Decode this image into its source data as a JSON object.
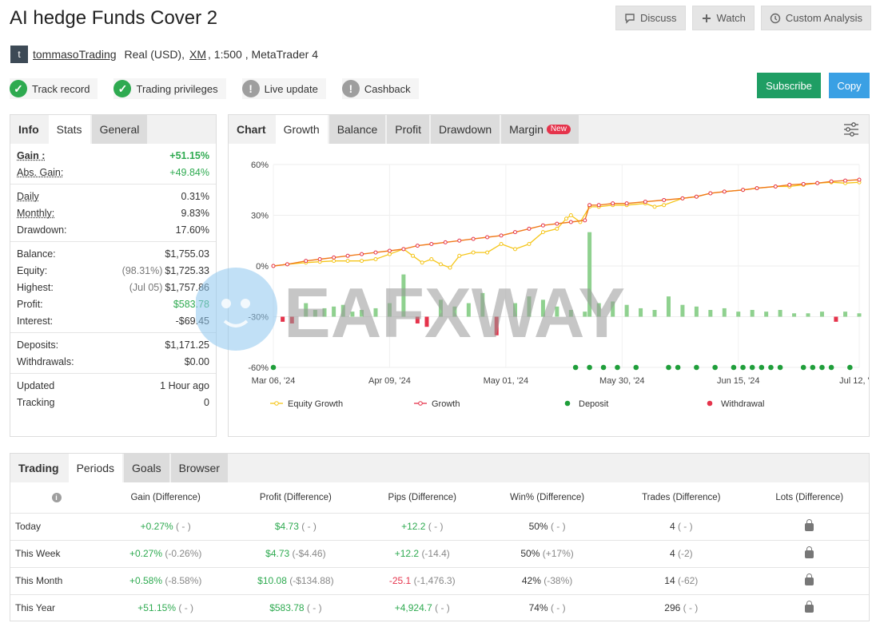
{
  "header": {
    "title": "AI hedge Funds Cover 2",
    "discuss_label": "Discuss",
    "watch_label": "Watch",
    "custom_analysis_label": "Custom Analysis"
  },
  "owner": {
    "avatar_letter": "t",
    "name": "tommasoTrading",
    "account_type": "Real (USD),",
    "broker": "XM",
    "details": ", 1:500 , MetaTrader 4"
  },
  "badges": [
    {
      "label": "Track record",
      "status": "ok"
    },
    {
      "label": "Trading privileges",
      "status": "ok"
    },
    {
      "label": "Live update",
      "status": "warn"
    },
    {
      "label": "Cashback",
      "status": "warn"
    }
  ],
  "actions": {
    "subscribe_label": "Subscribe",
    "copy_label": "Copy"
  },
  "stats_tabs": [
    "Info",
    "Stats",
    "General"
  ],
  "stats": {
    "gain_label": "Gain :",
    "gain_value": "+51.15%",
    "abs_gain_label": "Abs. Gain:",
    "abs_gain_value": "+49.84%",
    "daily_label": "Daily",
    "daily_value": "0.31%",
    "monthly_label": "Monthly:",
    "monthly_value": "9.83%",
    "drawdown_label": "Drawdown:",
    "drawdown_value": "17.60%",
    "balance_label": "Balance:",
    "balance_value": "$1,755.03",
    "equity_label": "Equity:",
    "equity_pct": "(98.31%)",
    "equity_value": "$1,725.33",
    "highest_label": "Highest:",
    "highest_date": "(Jul 05)",
    "highest_value": "$1,757.86",
    "profit_label": "Profit:",
    "profit_value": "$583.78",
    "interest_label": "Interest:",
    "interest_value": "-$69.45",
    "deposits_label": "Deposits:",
    "deposits_value": "$1,171.25",
    "withdrawals_label": "Withdrawals:",
    "withdrawals_value": "$0.00",
    "updated_label": "Updated",
    "updated_value": "1 Hour ago",
    "tracking_label": "Tracking",
    "tracking_value": "0"
  },
  "chart_tabs": [
    "Chart",
    "Growth",
    "Balance",
    "Profit",
    "Drawdown",
    "Margin"
  ],
  "chart_new_badge": "New",
  "watermark_text": "EAFXWAY",
  "chart_data": {
    "type": "line",
    "ylim": [
      -60,
      60
    ],
    "ytick_labels": [
      "60%",
      "30%",
      "0%",
      "-30%",
      "-60%"
    ],
    "yticks": [
      60,
      30,
      0,
      -30,
      -60
    ],
    "xtick_labels": [
      "Mar 06, '24",
      "Apr 09, '24",
      "May 01, '24",
      "May 30, '24",
      "Jun 15, '24",
      "Jul 12, '24"
    ],
    "xticks": [
      0,
      25,
      50,
      75,
      100,
      126
    ],
    "xlim": [
      0,
      126
    ],
    "legend": [
      "Equity Growth",
      "Growth",
      "Deposit",
      "Withdrawal"
    ],
    "colors": {
      "equity": "#f5c518",
      "growth": "#e5334b",
      "growth_line": "#f07a1a",
      "deposit": "#1f9e3a",
      "withdrawal": "#e5334b",
      "bar_pos": "#8fd18f",
      "bar_neg": "#e5334b"
    },
    "series": [
      {
        "name": "Growth",
        "points": [
          [
            0,
            0
          ],
          [
            3,
            1
          ],
          [
            7,
            3
          ],
          [
            10,
            4
          ],
          [
            13,
            5
          ],
          [
            16,
            6
          ],
          [
            19,
            7
          ],
          [
            22,
            8
          ],
          [
            25,
            9
          ],
          [
            28,
            10
          ],
          [
            31,
            12
          ],
          [
            34,
            13
          ],
          [
            37,
            14
          ],
          [
            40,
            15
          ],
          [
            43,
            16
          ],
          [
            46,
            17
          ],
          [
            49,
            18
          ],
          [
            52,
            20
          ],
          [
            55,
            22
          ],
          [
            58,
            24
          ],
          [
            61,
            25
          ],
          [
            64,
            26
          ],
          [
            67,
            27
          ],
          [
            68,
            36
          ],
          [
            70,
            36
          ],
          [
            73,
            37
          ],
          [
            76,
            37
          ],
          [
            80,
            38
          ],
          [
            84,
            39
          ],
          [
            88,
            40
          ],
          [
            91,
            41
          ],
          [
            94,
            43
          ],
          [
            97,
            44
          ],
          [
            101,
            45
          ],
          [
            104,
            46
          ],
          [
            108,
            47
          ],
          [
            111,
            48
          ],
          [
            114,
            48.5
          ],
          [
            117,
            49
          ],
          [
            120,
            50
          ],
          [
            123,
            50.5
          ],
          [
            126,
            51
          ]
        ]
      },
      {
        "name": "Equity Growth",
        "points": [
          [
            0,
            0
          ],
          [
            3,
            1
          ],
          [
            7,
            2
          ],
          [
            10,
            2.5
          ],
          [
            13,
            3
          ],
          [
            16,
            3
          ],
          [
            19,
            3
          ],
          [
            22,
            4
          ],
          [
            25,
            7
          ],
          [
            28,
            10
          ],
          [
            30,
            6
          ],
          [
            32,
            2
          ],
          [
            34,
            4
          ],
          [
            36,
            1
          ],
          [
            38,
            -1
          ],
          [
            40,
            6
          ],
          [
            43,
            8
          ],
          [
            46,
            8
          ],
          [
            49,
            13
          ],
          [
            52,
            10
          ],
          [
            55,
            13
          ],
          [
            58,
            20
          ],
          [
            61,
            22
          ],
          [
            63,
            28
          ],
          [
            64,
            30
          ],
          [
            66,
            26
          ],
          [
            68,
            35
          ],
          [
            70,
            35
          ],
          [
            73,
            36
          ],
          [
            76,
            36
          ],
          [
            80,
            37
          ],
          [
            82,
            35
          ],
          [
            84,
            36
          ],
          [
            88,
            40
          ],
          [
            91,
            41
          ],
          [
            94,
            43
          ],
          [
            97,
            44
          ],
          [
            101,
            45
          ],
          [
            104,
            46
          ],
          [
            108,
            47
          ],
          [
            111,
            47
          ],
          [
            114,
            48
          ],
          [
            117,
            49
          ],
          [
            120,
            49.5
          ],
          [
            123,
            49
          ],
          [
            126,
            49.5
          ]
        ]
      }
    ],
    "daily_bars": [
      [
        2,
        -3
      ],
      [
        4,
        -4
      ],
      [
        7,
        8
      ],
      [
        9,
        4
      ],
      [
        11,
        5
      ],
      [
        13,
        6
      ],
      [
        15,
        7
      ],
      [
        17,
        3
      ],
      [
        19,
        4
      ],
      [
        22,
        5
      ],
      [
        25,
        8
      ],
      [
        28,
        25
      ],
      [
        31,
        -4
      ],
      [
        33,
        -6
      ],
      [
        36,
        10
      ],
      [
        39,
        6
      ],
      [
        42,
        8
      ],
      [
        45,
        14
      ],
      [
        48,
        -11
      ],
      [
        52,
        8
      ],
      [
        55,
        12
      ],
      [
        58,
        10
      ],
      [
        61,
        6
      ],
      [
        64,
        4
      ],
      [
        67,
        3
      ],
      [
        68,
        50
      ],
      [
        70,
        8
      ],
      [
        73,
        9
      ],
      [
        76,
        7
      ],
      [
        79,
        5
      ],
      [
        82,
        4
      ],
      [
        85,
        12
      ],
      [
        88,
        7
      ],
      [
        91,
        6
      ],
      [
        94,
        4
      ],
      [
        97,
        5
      ],
      [
        100,
        3
      ],
      [
        103,
        4
      ],
      [
        106,
        3
      ],
      [
        109,
        4
      ],
      [
        112,
        2
      ],
      [
        115,
        2
      ],
      [
        118,
        3
      ],
      [
        121,
        -3
      ],
      [
        123,
        3
      ],
      [
        126,
        2
      ]
    ],
    "deposit_x": [
      0,
      65,
      68,
      71,
      74,
      78,
      85,
      87,
      91,
      95,
      99,
      101,
      103,
      105,
      107,
      109,
      114,
      116,
      118,
      120,
      124
    ],
    "withdrawal_x": []
  },
  "periods_tabs": [
    "Trading",
    "Periods",
    "Goals",
    "Browser"
  ],
  "periods": {
    "headers": [
      "Gain (Difference)",
      "Profit (Difference)",
      "Pips (Difference)",
      "Win% (Difference)",
      "Trades (Difference)",
      "Lots (Difference)"
    ],
    "rows": [
      {
        "period": "Today",
        "gain": "+0.27%",
        "gain_diff": "( - )",
        "profit": "$4.73",
        "profit_diff": "( - )",
        "pips": "+12.2",
        "pips_class": "green",
        "pips_diff": "( - )",
        "win": "50%",
        "win_diff": "( - )",
        "trades": "4",
        "trades_diff": "( - )"
      },
      {
        "period": "This Week",
        "gain": "+0.27%",
        "gain_diff": "(-0.26%)",
        "profit": "$4.73",
        "profit_diff": "(-$4.46)",
        "pips": "+12.2",
        "pips_class": "green",
        "pips_diff": "(-14.4)",
        "win": "50%",
        "win_diff": "(+17%)",
        "trades": "4",
        "trades_diff": "(-2)"
      },
      {
        "period": "This Month",
        "gain": "+0.58%",
        "gain_diff": "(-8.58%)",
        "profit": "$10.08",
        "profit_diff": "(-$134.88)",
        "pips": "-25.1",
        "pips_class": "red",
        "pips_diff": "(-1,476.3)",
        "win": "42%",
        "win_diff": "(-38%)",
        "trades": "14",
        "trades_diff": "(-62)"
      },
      {
        "period": "This Year",
        "gain": "+51.15%",
        "gain_diff": "( - )",
        "profit": "$583.78",
        "profit_diff": "( - )",
        "pips": "+4,924.7",
        "pips_class": "green",
        "pips_diff": "( - )",
        "win": "74%",
        "win_diff": "( - )",
        "trades": "296",
        "trades_diff": "( - )"
      }
    ]
  }
}
